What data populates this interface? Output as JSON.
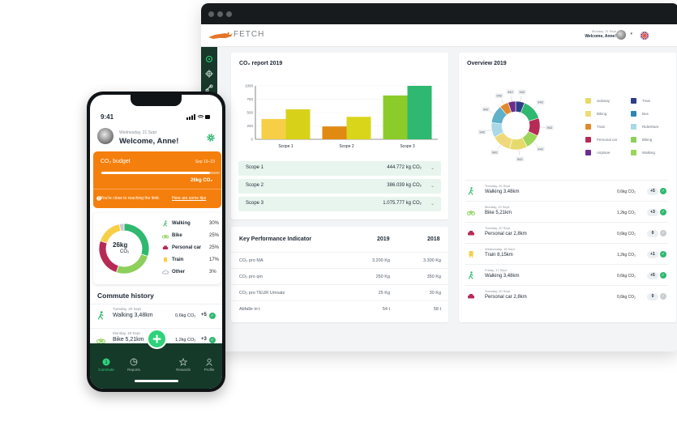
{
  "desktop": {
    "brand": "FETCH",
    "header": {
      "date": "Monday, 21 Sept",
      "welcome": "Welcome, Anne!"
    },
    "co2_report": {
      "title": "CO₂ report 2019",
      "scopes": [
        {
          "label": "Scope 1",
          "value": "444.772 kg CO₂"
        },
        {
          "label": "Scope 2",
          "value": "386.039 kg CO₂"
        },
        {
          "label": "Scope 3",
          "value": "1.075.777 kg CO₂"
        }
      ]
    },
    "kpi": {
      "title": "Key Performance Indicator",
      "col_2019": "2019",
      "col_2018": "2018",
      "rows": [
        {
          "label": "CO₂ pro MA",
          "v2019": "3.200 Kg",
          "v2018": "3.300 Kg"
        },
        {
          "label": "CO₂ pro qm",
          "v2019": "250 Kg",
          "v2018": "350 Kg"
        },
        {
          "label": "CO₂ pro TEUR Umsatz",
          "v2019": "25 Kg",
          "v2018": "30 Kg"
        },
        {
          "label": "Abfalle in t",
          "v2019": "54 t",
          "v2018": "58 t"
        }
      ]
    },
    "overview": {
      "title": "Overview 2019",
      "legend": [
        {
          "label": "Subway",
          "color": "#e6da6b"
        },
        {
          "label": "Train",
          "color": "#2d3e87"
        },
        {
          "label": "Biking",
          "color": "#f0d97a"
        },
        {
          "label": "Bus",
          "color": "#2f86b5"
        },
        {
          "label": "Train",
          "color": "#e08a2c"
        },
        {
          "label": "Rideshare",
          "color": "#a9d8e6"
        },
        {
          "label": "Personal car",
          "color": "#b62b55"
        },
        {
          "label": "Biking",
          "color": "#8ccf5a"
        },
        {
          "label": "Airplane",
          "color": "#6a2f8c"
        },
        {
          "label": "Walking",
          "color": "#9bd55a"
        }
      ],
      "activities": [
        {
          "date": "Tuesday, 20 Sept",
          "desc": "Walking 3,48km",
          "co2": "0,6kg CO₂",
          "pts": "+5",
          "icon": "walking-icon",
          "done": true
        },
        {
          "date": "Monday, 19 Sept",
          "desc": "Bike 5,21km",
          "co2": "1,2kg CO₂",
          "pts": "+3",
          "icon": "bike-icon",
          "done": true
        },
        {
          "date": "Tuesday, 20 Sept",
          "desc": "Personal car 2,8km",
          "co2": "0,6kg CO₂",
          "pts": "0",
          "icon": "car-icon",
          "done": false
        },
        {
          "date": "Wednesday, 18 Sept",
          "desc": "Train 8,15km",
          "co2": "1,2kg CO₂",
          "pts": "+1",
          "icon": "train-icon",
          "done": true
        },
        {
          "date": "Friday, 17 Sept",
          "desc": "Walking 3,48km",
          "co2": "0,6kg CO₂",
          "pts": "+5",
          "icon": "walking-icon",
          "done": true
        },
        {
          "date": "Tuesday, 20 Sept",
          "desc": "Personal car 2,8km",
          "co2": "0,6kg CO₂",
          "pts": "0",
          "icon": "car-icon",
          "done": false
        }
      ]
    }
  },
  "chart_data": [
    {
      "type": "bar",
      "categories": [
        "Scope 1",
        "Scope 2",
        "Scope 3"
      ],
      "series": [
        {
          "values": [
            380,
            240,
            820
          ]
        },
        {
          "values": [
            560,
            420,
            1000
          ]
        }
      ],
      "colors": [
        [
          "#f6cf47",
          "#d8d11a"
        ],
        [
          "#e08a13",
          "#d9d51b"
        ],
        [
          "#8bcb2a",
          "#2fb86f"
        ]
      ],
      "yticks": [
        "0",
        "250",
        "500",
        "750",
        "1000"
      ],
      "ylim": [
        0,
        1000
      ]
    },
    {
      "type": "pie",
      "labels": [
        "942",
        "942",
        "942",
        "942",
        "942",
        "942",
        "942",
        "942",
        "942",
        "942"
      ],
      "values": [
        6,
        14,
        12,
        10,
        12,
        13,
        10,
        12,
        6,
        5
      ],
      "colors": [
        "#2d3e87",
        "#2fb86f",
        "#b62b55",
        "#9bd55a",
        "#e6da6b",
        "#f0d97a",
        "#a9d8e6",
        "#5fb0c9",
        "#e08a2c",
        "#6a2f8c"
      ]
    },
    {
      "type": "pie",
      "center_value": "26kg",
      "center_unit": "CO₂",
      "labels": [
        "Walking",
        "Bike",
        "Personal car",
        "Train",
        "Other"
      ],
      "values": [
        30,
        25,
        25,
        17,
        3
      ],
      "colors": [
        "#2fb86f",
        "#8ccf5a",
        "#b62b55",
        "#f6cf47",
        "#c9cdd1"
      ]
    }
  ],
  "phone": {
    "time": "9:41",
    "date": "Wednesday, 21 Sept",
    "welcome": "Welcome, Anne!",
    "budget": {
      "title": "CO₂ budget",
      "dates": "Sep 19–23",
      "value": "26kg CO₂",
      "progress": 0.92,
      "warning": "You're close to reaching the limit.",
      "tips": "Here are some tips"
    },
    "breakdown": [
      {
        "label": "Walking",
        "pct": "30%"
      },
      {
        "label": "Bike",
        "pct": "25%"
      },
      {
        "label": "Personal car",
        "pct": "25%"
      },
      {
        "label": "Train",
        "pct": "17%"
      },
      {
        "label": "Other",
        "pct": "3%"
      }
    ],
    "history_title": "Commute history",
    "history": [
      {
        "date": "Tuesday, 20 Sept",
        "desc": "Walking 3,48km",
        "co2": "0,6kg CO₂",
        "pts": "+5"
      },
      {
        "date": "Monday, 19 Sept",
        "desc": "Bike 5,21km",
        "co2": "1,2kg CO₂",
        "pts": "+3"
      }
    ],
    "tabs": [
      "Commute",
      "Reports",
      "Rewards",
      "Profile"
    ]
  }
}
